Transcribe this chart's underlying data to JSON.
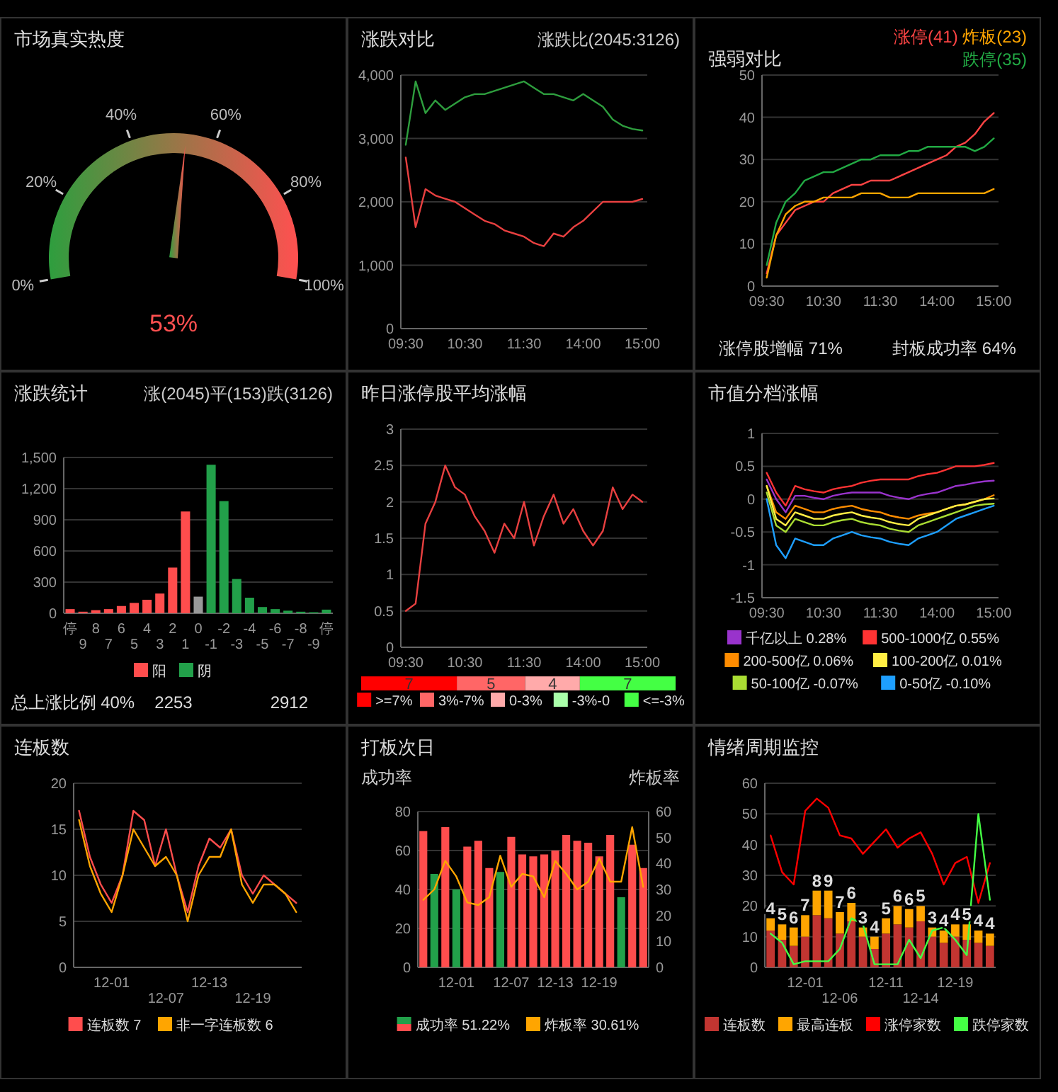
{
  "chart_data": [
    {
      "type": "other",
      "title": "市场真实热度",
      "values": [
        53
      ],
      "value_labels": [
        "53%"
      ],
      "color": "#ff5050",
      "annotations": [
        "0%",
        "20%",
        "40%",
        "60%",
        "80%",
        "100%"
      ]
    },
    {
      "type": "line",
      "title": "涨跌对比",
      "subtitle": "涨跌比(2045:3126)",
      "grid": "y",
      "categories": [
        "09:30",
        null,
        null,
        null,
        null,
        null,
        "10:30",
        null,
        null,
        null,
        null,
        null,
        "11:30",
        null,
        null,
        null,
        null,
        null,
        "14:00",
        null,
        null,
        null,
        null,
        null,
        "15:00"
      ],
      "ylim": [
        0,
        4000
      ],
      "yticks": [
        0,
        {
          "value": 1000,
          "label": "1,000"
        },
        {
          "value": 2000,
          "label": "2,000"
        },
        {
          "value": 3000,
          "label": "3,000"
        },
        {
          "value": 4000,
          "label": "4,000"
        }
      ],
      "series": [
        {
          "color": "#e84040",
          "values": [
            2700,
            1600,
            2200,
            2100,
            2050,
            2000,
            1900,
            1800,
            1700,
            1650,
            1550,
            1500,
            1450,
            1350,
            1300,
            1500,
            1450,
            1600,
            1700,
            1850,
            2000,
            2000,
            2000,
            2000,
            2045
          ]
        },
        {
          "color": "#2e9e3e",
          "values": [
            2900,
            3900,
            3400,
            3600,
            3450,
            3550,
            3650,
            3700,
            3700,
            3750,
            3800,
            3850,
            3900,
            3800,
            3700,
            3700,
            3650,
            3600,
            3700,
            3600,
            3500,
            3300,
            3200,
            3150,
            3126
          ]
        }
      ]
    },
    {
      "type": "line",
      "title": "强弱对比",
      "legend": "top right",
      "grid": "y",
      "annotations": [
        "涨停股增幅 71%",
        "封板成功率 64%"
      ],
      "categories": [
        "09:30",
        null,
        null,
        null,
        null,
        null,
        "10:30",
        null,
        null,
        null,
        null,
        null,
        "11:30",
        null,
        null,
        null,
        null,
        null,
        "14:00",
        null,
        null,
        null,
        null,
        null,
        "15:00"
      ],
      "ylim": [
        0,
        50
      ],
      "yticks": [
        0,
        10,
        20,
        30,
        40,
        50
      ],
      "series": [
        {
          "name": "涨停(41)",
          "color": "#ff4444",
          "values": [
            3,
            12,
            15,
            18,
            19,
            20,
            20,
            22,
            23,
            24,
            24,
            25,
            25,
            25,
            26,
            27,
            28,
            29,
            30,
            31,
            33,
            34,
            36,
            39,
            41
          ]
        },
        {
          "name": "炸板(23)",
          "color": "#ffa500",
          "values": [
            2,
            12,
            17,
            19,
            20,
            20,
            21,
            21,
            21,
            21,
            22,
            22,
            22,
            21,
            21,
            21,
            22,
            22,
            22,
            22,
            22,
            22,
            22,
            22,
            23
          ]
        },
        {
          "name": "跌停(35)",
          "color": "#22aa44",
          "values": [
            5,
            15,
            20,
            22,
            25,
            26,
            27,
            27,
            28,
            29,
            30,
            30,
            31,
            31,
            31,
            32,
            32,
            33,
            33,
            33,
            33,
            33,
            32,
            33,
            35
          ]
        }
      ]
    },
    {
      "type": "bar",
      "title": "涨跌统计",
      "subtitle": "涨(2045)平(153)跌(3126)",
      "legend": "bottom",
      "grid": "y",
      "annotations": [
        "总上涨比例 40%",
        "2253",
        "2912"
      ],
      "categories": [
        "停",
        "9",
        "8",
        "7",
        "6",
        "5",
        "4",
        "3",
        "2",
        "1",
        "0",
        "-1",
        "-2",
        "-3",
        "-4",
        "-5",
        "-6",
        "-7",
        "-8",
        "-9",
        "停"
      ],
      "ylim": [
        0,
        1500
      ],
      "yticks": [
        0,
        300,
        600,
        900,
        {
          "value": 1200,
          "label": "1,200"
        },
        {
          "value": 1500,
          "label": "1,500"
        }
      ],
      "series": [
        {
          "name": "阳",
          "color": "#ff4d4d",
          "values": [
            40,
            15,
            30,
            40,
            70,
            100,
            130,
            190,
            440,
            980,
            null,
            null,
            null,
            null,
            null,
            null,
            null,
            null,
            null,
            null,
            null
          ]
        },
        {
          "color": "#999999",
          "values": [
            null,
            null,
            null,
            null,
            null,
            null,
            null,
            null,
            null,
            null,
            160,
            null,
            null,
            null,
            null,
            null,
            null,
            null,
            null,
            null,
            null
          ]
        },
        {
          "name": "阴",
          "color": "#22a04a",
          "values": [
            null,
            null,
            null,
            null,
            null,
            null,
            null,
            null,
            null,
            null,
            null,
            1430,
            1080,
            330,
            150,
            60,
            40,
            25,
            15,
            10,
            35
          ]
        }
      ]
    },
    {
      "type": "line",
      "title": "昨日涨停股平均涨幅",
      "grid": "y",
      "categories": [
        "09:30",
        null,
        null,
        null,
        null,
        null,
        "10:30",
        null,
        null,
        null,
        null,
        null,
        "11:30",
        null,
        null,
        null,
        null,
        null,
        "14:00",
        null,
        null,
        null,
        null,
        null,
        "15:00"
      ],
      "ylim": [
        0,
        3
      ],
      "yticks": [
        0,
        0.5,
        1,
        1.5,
        2,
        2.5,
        3
      ],
      "series": [
        {
          "color": "#e84040",
          "values": [
            0.5,
            0.6,
            1.7,
            2.0,
            2.5,
            2.2,
            2.1,
            1.8,
            1.6,
            1.3,
            1.7,
            1.5,
            2.0,
            1.4,
            1.8,
            2.1,
            1.7,
            1.9,
            1.6,
            1.4,
            1.6,
            2.2,
            1.9,
            2.1,
            2.0
          ]
        }
      ]
    },
    {
      "type": "bar",
      "orientation": "horizontal",
      "stacked": true,
      "legend": "bottom",
      "categories": [
        null
      ],
      "series": [
        {
          "name": ">=7%",
          "color": "#ff0000",
          "values": [
            7
          ],
          "value_labels": [
            "7"
          ]
        },
        {
          "name": "3%-7%",
          "color": "#ff6666",
          "values": [
            5
          ],
          "value_labels": [
            "5"
          ]
        },
        {
          "name": "0-3%",
          "color": "#ffaaaa",
          "values": [
            4
          ],
          "value_labels": [
            "4"
          ]
        },
        {
          "name": "-3%-0",
          "color": "#aaffaa",
          "values": [
            0
          ],
          "value_labels": [
            null
          ]
        },
        {
          "name": "<=-3%",
          "color": "#44ff44",
          "values": [
            7
          ],
          "value_labels": [
            "7"
          ]
        }
      ]
    },
    {
      "type": "line",
      "title": "市值分档涨幅",
      "legend": "bottom",
      "grid": "y",
      "categories": [
        "09:30",
        null,
        null,
        null,
        null,
        null,
        "10:30",
        null,
        null,
        null,
        null,
        null,
        "11:30",
        null,
        null,
        null,
        null,
        null,
        "14:00",
        null,
        null,
        null,
        null,
        null,
        "15:00"
      ],
      "ylim": [
        -1.5,
        1
      ],
      "yticks": [
        -1.5,
        -1,
        -0.5,
        0,
        0.5,
        1
      ],
      "series": [
        {
          "name": "千亿以上 0.28%",
          "color": "#9933cc",
          "values": [
            0.3,
            0,
            -0.2,
            0.05,
            0.05,
            0.02,
            0,
            0.05,
            0.08,
            0.1,
            0.1,
            0.1,
            0.1,
            0.05,
            0.02,
            0,
            0.05,
            0.08,
            0.1,
            0.15,
            0.2,
            0.22,
            0.25,
            0.27,
            0.28
          ]
        },
        {
          "name": "500-1000亿 0.55%",
          "color": "#ff3333",
          "values": [
            0.4,
            0.1,
            -0.1,
            0.2,
            0.15,
            0.12,
            0.1,
            0.15,
            0.18,
            0.2,
            0.25,
            0.28,
            0.3,
            0.3,
            0.3,
            0.3,
            0.35,
            0.38,
            0.4,
            0.45,
            0.5,
            0.5,
            0.5,
            0.52,
            0.55
          ]
        },
        {
          "name": "200-500亿 0.06%",
          "color": "#ff8c00",
          "values": [
            0.2,
            -0.2,
            -0.3,
            -0.1,
            -0.15,
            -0.2,
            -0.2,
            -0.15,
            -0.12,
            -0.1,
            -0.15,
            -0.18,
            -0.2,
            -0.25,
            -0.28,
            -0.3,
            -0.25,
            -0.22,
            -0.2,
            -0.15,
            -0.1,
            -0.08,
            -0.04,
            0,
            0.06
          ]
        },
        {
          "name": "100-200亿 0.01%",
          "color": "#ffee44",
          "values": [
            0.2,
            -0.3,
            -0.4,
            -0.2,
            -0.25,
            -0.3,
            -0.3,
            -0.25,
            -0.22,
            -0.2,
            -0.25,
            -0.28,
            -0.3,
            -0.35,
            -0.38,
            -0.4,
            -0.3,
            -0.25,
            -0.2,
            -0.15,
            -0.1,
            -0.08,
            -0.04,
            0,
            0.01
          ]
        },
        {
          "name": "50-100亿 -0.07%",
          "color": "#aadd33",
          "values": [
            0.1,
            -0.4,
            -0.5,
            -0.3,
            -0.35,
            -0.4,
            -0.4,
            -0.35,
            -0.32,
            -0.3,
            -0.35,
            -0.38,
            -0.4,
            -0.45,
            -0.48,
            -0.5,
            -0.4,
            -0.35,
            -0.3,
            -0.25,
            -0.2,
            -0.15,
            -0.1,
            -0.08,
            -0.07
          ]
        },
        {
          "name": "0-50亿 -0.10%",
          "color": "#1e9fff",
          "values": [
            0,
            -0.7,
            -0.9,
            -0.6,
            -0.65,
            -0.7,
            -0.7,
            -0.6,
            -0.55,
            -0.5,
            -0.55,
            -0.58,
            -0.6,
            -0.65,
            -0.68,
            -0.7,
            -0.6,
            -0.55,
            -0.5,
            -0.4,
            -0.3,
            -0.25,
            -0.2,
            -0.15,
            -0.1
          ]
        }
      ]
    },
    {
      "type": "line",
      "title": "连板数",
      "legend": "bottom",
      "grid": "y",
      "categories": [
        null,
        null,
        null,
        "12-01",
        null,
        null,
        null,
        null,
        "12-07",
        null,
        null,
        null,
        "12-13",
        null,
        null,
        null,
        "12-19",
        null,
        null,
        null,
        null
      ],
      "ylim": [
        0,
        20
      ],
      "yticks": [
        0,
        5,
        10,
        15,
        20
      ],
      "series": [
        {
          "name": "连板数 7",
          "color": "#ff4d4d",
          "values": [
            17,
            12,
            9,
            7,
            10,
            17,
            16,
            11,
            15,
            10,
            6,
            11,
            14,
            13,
            15,
            10,
            8,
            10,
            9,
            8,
            7
          ]
        },
        {
          "name": "非一字连板数 6",
          "color": "#ffa500",
          "values": [
            16,
            11,
            8,
            6,
            10,
            15,
            13,
            11,
            12,
            10,
            5,
            10,
            12,
            12,
            15,
            9,
            7,
            9,
            9,
            8,
            6
          ]
        }
      ]
    },
    {
      "type": "bar",
      "title": "打板次日",
      "ylabel": "成功率",
      "y2label": "炸板率",
      "legend": "bottom",
      "grid": "y",
      "categories": [
        null,
        null,
        null,
        "12-01",
        null,
        null,
        null,
        null,
        "12-07",
        null,
        null,
        null,
        "12-13",
        null,
        null,
        null,
        "12-19",
        null,
        null,
        null,
        null
      ],
      "ylim": [
        0,
        80
      ],
      "yticks": [
        0,
        20,
        40,
        60,
        80
      ],
      "y2lim": [
        0,
        60
      ],
      "y2ticks": [
        0,
        10,
        20,
        30,
        40,
        50,
        60
      ],
      "series": [
        {
          "name": "成功率 51.22%",
          "colors": [
            "#ff4d4d",
            "#22a04a",
            "#ff4d4d",
            "#22a04a",
            "#ff4d4d",
            "#ff4d4d",
            "#ff4d4d",
            "#22a04a",
            "#ff4d4d",
            "#ff4d4d",
            "#ff4d4d",
            "#ff4d4d",
            "#ff4d4d",
            "#ff4d4d",
            "#ff4d4d",
            "#ff4d4d",
            "#ff4d4d",
            "#ff4d4d",
            "#22a04a",
            "#ff4d4d",
            "#ff4d4d"
          ],
          "values": [
            70,
            48,
            72,
            40,
            62,
            65,
            51,
            49,
            67,
            58,
            57,
            58,
            60,
            68,
            65,
            64,
            57,
            68,
            36,
            63,
            51
          ]
        },
        {
          "name": "炸板率 30.61%",
          "type": "line",
          "axis": "y2",
          "color": "#ffa500",
          "values": [
            26,
            30,
            41,
            35,
            25,
            24,
            27,
            43,
            31,
            36,
            35,
            27,
            41,
            36,
            30,
            33,
            42,
            33,
            33,
            54,
            31
          ]
        }
      ]
    },
    {
      "type": "bar",
      "title": "情绪周期监控",
      "stacked": true,
      "legend": "bottom",
      "grid": "y",
      "categories": [
        null,
        null,
        null,
        "12-01",
        null,
        null,
        "12-06",
        null,
        null,
        null,
        "12-11",
        null,
        null,
        "12-14",
        null,
        null,
        "12-19",
        null,
        null,
        null
      ],
      "ylim": [
        0,
        60
      ],
      "yticks": [
        0,
        10,
        20,
        30,
        40,
        50,
        60
      ],
      "series": [
        {
          "name": "连板数",
          "color": "#c23531",
          "values": [
            12,
            9,
            7,
            10,
            17,
            16,
            11,
            15,
            10,
            6,
            11,
            14,
            13,
            15,
            10,
            8,
            10,
            9,
            8,
            7
          ]
        },
        {
          "name": "最高连板",
          "color": "#ffa500",
          "values": [
            4,
            5,
            6,
            7,
            8,
            9,
            7,
            6,
            3,
            4,
            5,
            6,
            6,
            5,
            3,
            4,
            4,
            5,
            4,
            4
          ],
          "value_labels": [
            "4",
            "5",
            "6",
            "7",
            "8",
            "9",
            "7",
            "6",
            "3",
            "4",
            "5",
            "6",
            "6",
            "5",
            "3",
            "4",
            "4",
            "5",
            "4",
            "4"
          ]
        },
        {
          "name": "涨停家数",
          "type": "line",
          "color": "#ff0000",
          "values": [
            43,
            31,
            27,
            51,
            55,
            52,
            43,
            42,
            37,
            41,
            45,
            39,
            42,
            44,
            37,
            27,
            34,
            36,
            21,
            34
          ]
        },
        {
          "name": "跌停家数",
          "type": "line",
          "color": "#44ff44",
          "values": [
            11,
            8,
            1,
            2,
            2,
            2,
            6,
            16,
            14,
            1,
            1,
            1,
            9,
            3,
            12,
            13,
            9,
            4,
            50,
            22
          ]
        }
      ]
    }
  ]
}
